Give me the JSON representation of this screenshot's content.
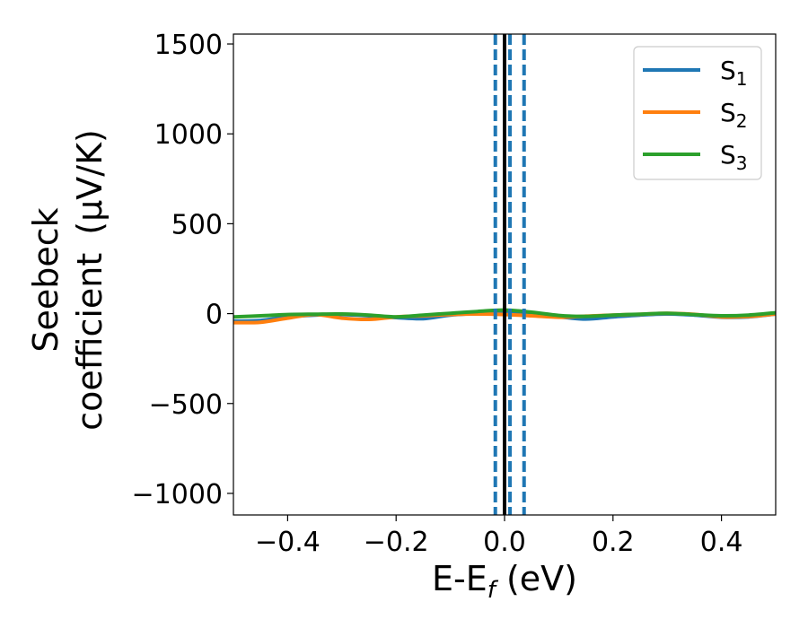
{
  "chart_data": {
    "type": "line",
    "xlabel": "E-E",
    "xlabel_sub": "f",
    "xlabel_unit": " (eV)",
    "ylabel_line1": "Seebeck",
    "ylabel_line2": "coefficient",
    "ylabel_unit": "(μV/K)",
    "xlim": [
      -0.5,
      0.5
    ],
    "ylim": [
      -1120,
      1555
    ],
    "xticks": [
      -0.4,
      -0.2,
      0.0,
      0.2,
      0.4
    ],
    "xtick_labels": [
      "−0.4",
      "−0.2",
      "0.0",
      "0.2",
      "0.4"
    ],
    "yticks": [
      -1000,
      -500,
      0,
      500,
      1000,
      1500
    ],
    "ytick_labels": [
      "−1000",
      "−500",
      "0",
      "500",
      "1000",
      "1500"
    ],
    "grid": false,
    "legend_position": "top-right",
    "vlines": [
      {
        "x": 0.0,
        "style": "solid",
        "color": "#000000"
      },
      {
        "x": -0.017,
        "style": "dashed",
        "color": "#1f77b4"
      },
      {
        "x": 0.01,
        "style": "dashed",
        "color": "#1f77b4"
      },
      {
        "x": 0.036,
        "style": "dashed",
        "color": "#1f77b4"
      }
    ],
    "x": [
      -0.5,
      -0.45,
      -0.4,
      -0.35,
      -0.3,
      -0.25,
      -0.2,
      -0.15,
      -0.1,
      -0.05,
      0.0,
      0.05,
      0.1,
      0.15,
      0.2,
      0.25,
      0.3,
      0.35,
      0.4,
      0.45,
      0.5
    ],
    "series": [
      {
        "name": "S",
        "sub": "1",
        "color": "#1f77b4",
        "values": [
          -42,
          -38,
          -18,
          -8,
          -5,
          -12,
          -22,
          -28,
          -8,
          2,
          8,
          -5,
          -18,
          -30,
          -18,
          -8,
          -2,
          -8,
          -20,
          -18,
          -2
        ]
      },
      {
        "name": "S",
        "sub": "2",
        "color": "#ff7f0e",
        "values": [
          -50,
          -48,
          -25,
          -5,
          -25,
          -32,
          -18,
          -12,
          -5,
          -2,
          -5,
          -12,
          -20,
          -14,
          -8,
          -4,
          2,
          -4,
          -18,
          -16,
          -2
        ]
      },
      {
        "name": "S",
        "sub": "3",
        "color": "#2ca02c",
        "values": [
          -18,
          -12,
          -5,
          -3,
          -2,
          -8,
          -18,
          -8,
          2,
          12,
          20,
          8,
          -10,
          -15,
          -8,
          -3,
          2,
          -5,
          -12,
          -8,
          5
        ]
      }
    ]
  }
}
